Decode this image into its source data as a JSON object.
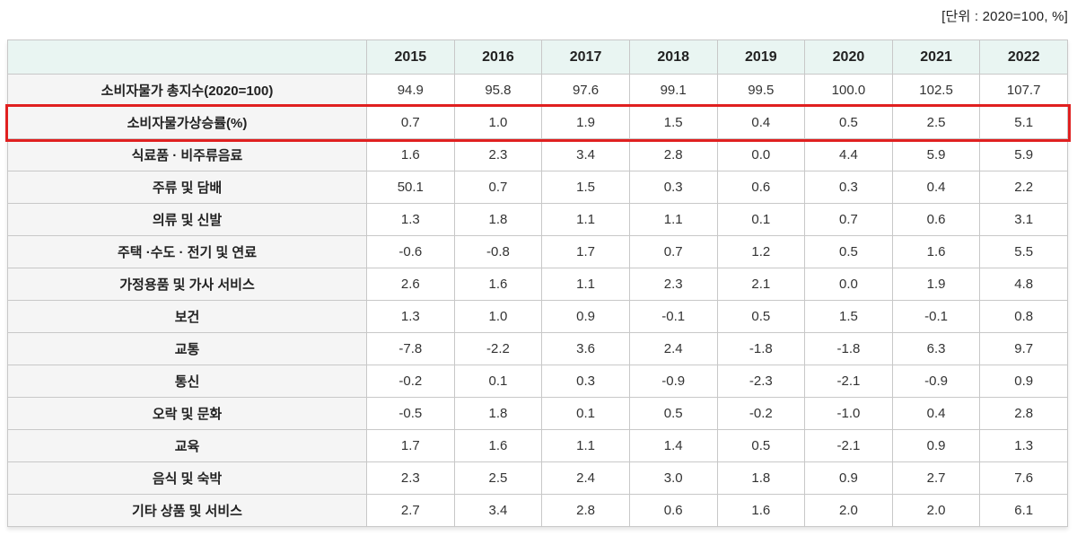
{
  "header": {
    "unit_label": "[단위 : 2020=100, %]"
  },
  "colors": {
    "header_bg": "#e9f5f2",
    "label_bg": "#f5f5f5",
    "cell_bg": "#ffffff",
    "border": "#c8c8c8",
    "highlight_border": "#e02020",
    "text": "#333333"
  },
  "chart_data": {
    "type": "table",
    "unit_note": "[단위 : 2020=100, %]",
    "columns": [
      "2015",
      "2016",
      "2017",
      "2018",
      "2019",
      "2020",
      "2021",
      "2022"
    ],
    "rows": [
      {
        "label": "소비자물가 총지수(2020=100)",
        "values": [
          "94.9",
          "95.8",
          "97.6",
          "99.1",
          "99.5",
          "100.0",
          "102.5",
          "107.7"
        ]
      },
      {
        "label": "소비자물가상승률(%)",
        "values": [
          "0.7",
          "1.0",
          "1.9",
          "1.5",
          "0.4",
          "0.5",
          "2.5",
          "5.1"
        ]
      },
      {
        "label": "식료품 · 비주류음료",
        "values": [
          "1.6",
          "2.3",
          "3.4",
          "2.8",
          "0.0",
          "4.4",
          "5.9",
          "5.9"
        ]
      },
      {
        "label": "주류 및 담배",
        "values": [
          "50.1",
          "0.7",
          "1.5",
          "0.3",
          "0.6",
          "0.3",
          "0.4",
          "2.2"
        ]
      },
      {
        "label": "의류 및 신발",
        "values": [
          "1.3",
          "1.8",
          "1.1",
          "1.1",
          "0.1",
          "0.7",
          "0.6",
          "3.1"
        ]
      },
      {
        "label": "주택 ·수도 · 전기 및 연료",
        "values": [
          "-0.6",
          "-0.8",
          "1.7",
          "0.7",
          "1.2",
          "0.5",
          "1.6",
          "5.5"
        ]
      },
      {
        "label": "가정용품 및 가사 서비스",
        "values": [
          "2.6",
          "1.6",
          "1.1",
          "2.3",
          "2.1",
          "0.0",
          "1.9",
          "4.8"
        ]
      },
      {
        "label": "보건",
        "values": [
          "1.3",
          "1.0",
          "0.9",
          "-0.1",
          "0.5",
          "1.5",
          "-0.1",
          "0.8"
        ]
      },
      {
        "label": "교통",
        "values": [
          "-7.8",
          "-2.2",
          "3.6",
          "2.4",
          "-1.8",
          "-1.8",
          "6.3",
          "9.7"
        ]
      },
      {
        "label": "통신",
        "values": [
          "-0.2",
          "0.1",
          "0.3",
          "-0.9",
          "-2.3",
          "-2.1",
          "-0.9",
          "0.9"
        ]
      },
      {
        "label": "오락 및 문화",
        "values": [
          "-0.5",
          "1.8",
          "0.1",
          "0.5",
          "-0.2",
          "-1.0",
          "0.4",
          "2.8"
        ]
      },
      {
        "label": "교육",
        "values": [
          "1.7",
          "1.6",
          "1.1",
          "1.4",
          "0.5",
          "-2.1",
          "0.9",
          "1.3"
        ]
      },
      {
        "label": "음식 및 숙박",
        "values": [
          "2.3",
          "2.5",
          "2.4",
          "3.0",
          "1.8",
          "0.9",
          "2.7",
          "7.6"
        ]
      },
      {
        "label": "기타 상품 및 서비스",
        "values": [
          "2.7",
          "3.4",
          "2.8",
          "0.6",
          "1.6",
          "2.0",
          "2.0",
          "6.1"
        ]
      }
    ],
    "highlighted_row_index": 1,
    "highlighted_row_label": "소비자물가상승률(%)"
  }
}
